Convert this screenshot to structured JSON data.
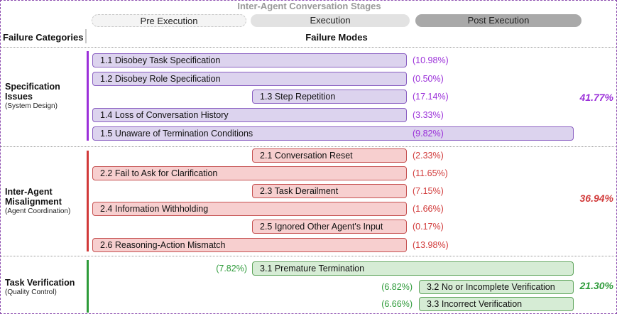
{
  "title": "Inter-Agent Conversation Stages",
  "stages": [
    "Pre Execution",
    "Execution",
    "Post Execution"
  ],
  "headers": {
    "categories": "Failure Categories",
    "modes": "Failure Modes"
  },
  "colors": {
    "spec": "#9b30d9",
    "inter": "#d13a3a",
    "task": "#2e9b3a"
  },
  "categories": [
    {
      "name_lines": [
        "Specification",
        "Issues"
      ],
      "subtitle": "(System Design)",
      "total": "41.77%",
      "modes": [
        {
          "label": "1.1 Disobey Task Specification",
          "pct": "(10.98%)",
          "stages": "pre-exec"
        },
        {
          "label": "1.2 Disobey Role Specification",
          "pct": "(0.50%)",
          "stages": "pre-exec"
        },
        {
          "label": "1.3 Step Repetition",
          "pct": "(17.14%)",
          "stages": "exec"
        },
        {
          "label": "1.4 Loss of Conversation History",
          "pct": "(3.33%)",
          "stages": "pre-exec"
        },
        {
          "label": "1.5 Unaware of Termination Conditions",
          "pct": "(9.82%)",
          "stages": "pre-post"
        }
      ]
    },
    {
      "name_lines": [
        "Inter-Agent",
        "Misalignment"
      ],
      "subtitle": "(Agent Coordination)",
      "total": "36.94%",
      "modes": [
        {
          "label": "2.1 Conversation Reset",
          "pct": "(2.33%)",
          "stages": "exec"
        },
        {
          "label": "2.2 Fail to Ask for Clarification",
          "pct": "(11.65%)",
          "stages": "pre-exec"
        },
        {
          "label": "2.3 Task Derailment",
          "pct": "(7.15%)",
          "stages": "exec"
        },
        {
          "label": "2.4 Information Withholding",
          "pct": "(1.66%)",
          "stages": "pre-exec"
        },
        {
          "label": "2.5 Ignored Other Agent's Input",
          "pct": "(0.17%)",
          "stages": "exec"
        },
        {
          "label": "2.6 Reasoning-Action Mismatch",
          "pct": "(13.98%)",
          "stages": "pre-exec"
        }
      ]
    },
    {
      "name_lines": [
        "Task Verification"
      ],
      "subtitle": "(Quality Control)",
      "total": "21.30%",
      "modes": [
        {
          "label": "3.1  Premature Termination",
          "pct": "(7.82%)",
          "stages": "exec-post"
        },
        {
          "label": "3.2 No or Incomplete Verification",
          "pct": "(6.82%)",
          "stages": "post"
        },
        {
          "label": "3.3 Incorrect Verification",
          "pct": "(6.66%)",
          "stages": "post"
        }
      ]
    }
  ]
}
